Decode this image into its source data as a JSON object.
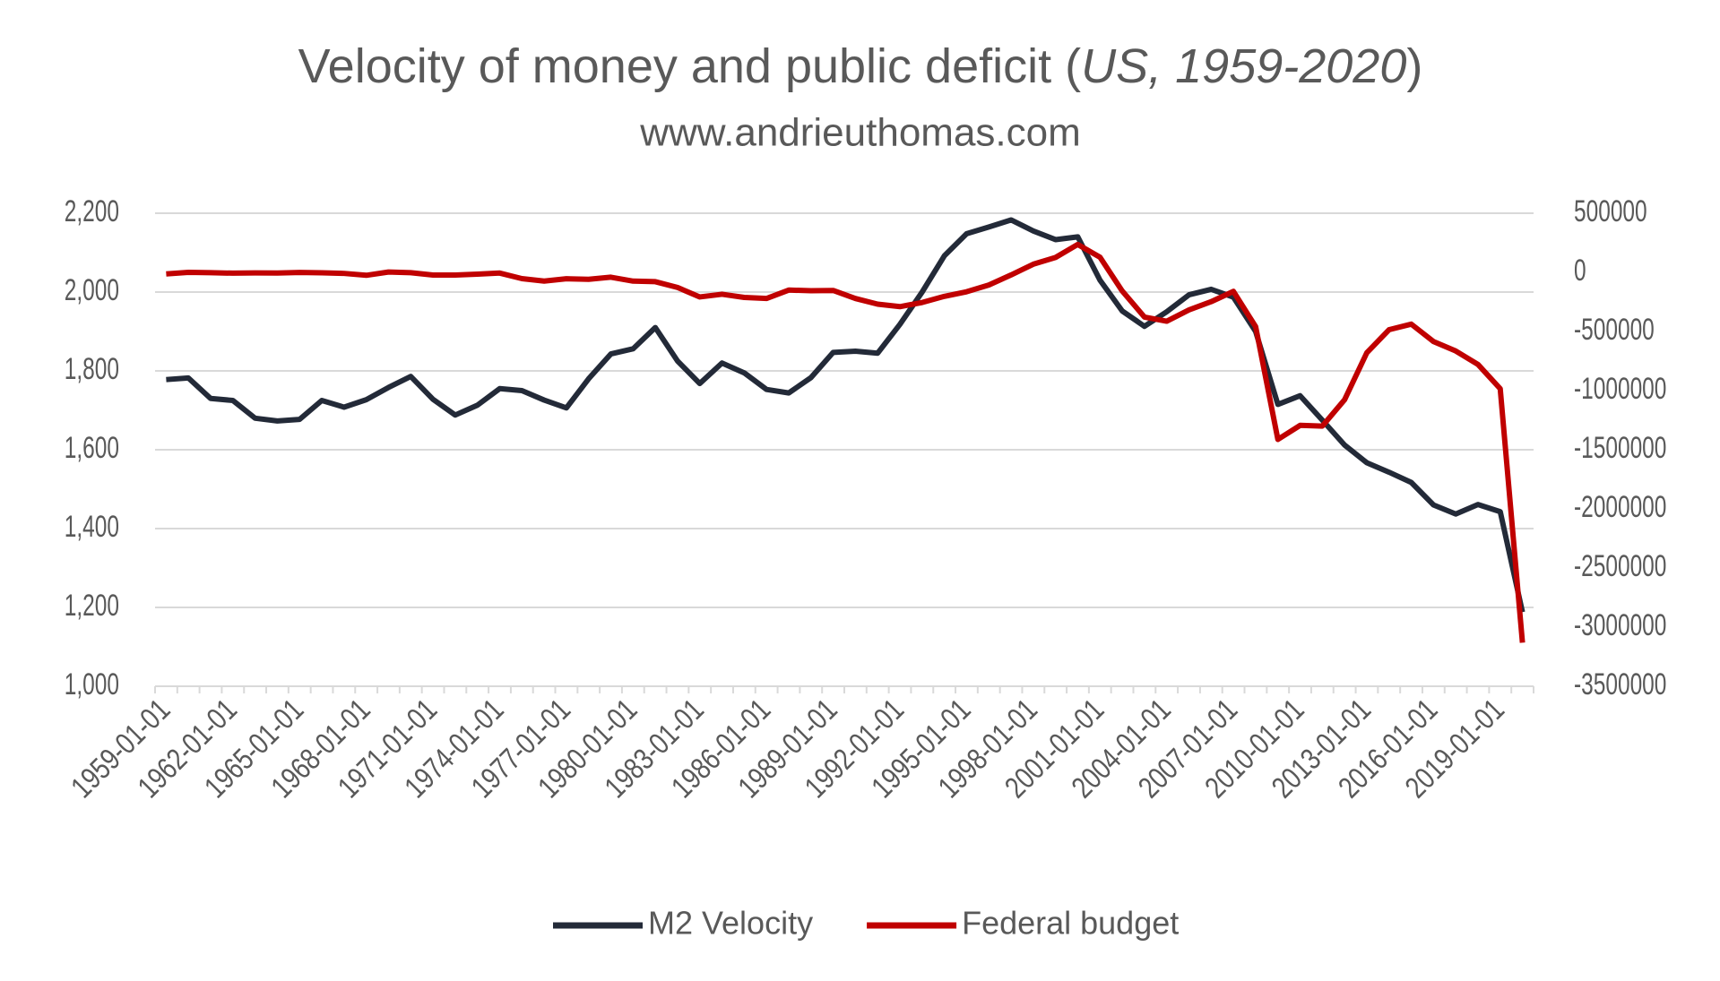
{
  "chart_data": {
    "type": "line",
    "title": [
      "Velocity of money and public deficit (",
      "US, 1959-2020",
      ")"
    ],
    "subtitle": "www.andrieuthomas.com",
    "categories": [
      "1959-01-01",
      null,
      null,
      "1962-01-01",
      null,
      null,
      "1965-01-01",
      null,
      null,
      "1968-01-01",
      null,
      null,
      "1971-01-01",
      null,
      null,
      "1974-01-01",
      null,
      null,
      "1977-01-01",
      null,
      null,
      "1980-01-01",
      null,
      null,
      "1983-01-01",
      null,
      null,
      "1986-01-01",
      null,
      null,
      "1989-01-01",
      null,
      null,
      "1992-01-01",
      null,
      null,
      "1995-01-01",
      null,
      null,
      "1998-01-01",
      null,
      null,
      "2001-01-01",
      null,
      null,
      "2004-01-01",
      null,
      null,
      "2007-01-01",
      null,
      null,
      "2010-01-01",
      null,
      null,
      "2013-01-01",
      null,
      null,
      "2016-01-01",
      null,
      null,
      "2019-01-01",
      null
    ],
    "series": [
      {
        "name": "M2 Velocity",
        "color": "#232a38",
        "values": [
          1778,
          1782,
          1730,
          1725,
          1680,
          1673,
          1677,
          1725,
          1708,
          1727,
          1758,
          1786,
          1728,
          1688,
          1713,
          1755,
          1750,
          1726,
          1706,
          1780,
          1843,
          1856,
          1910,
          1825,
          1768,
          1820,
          1795,
          1753,
          1744,
          1783,
          1847,
          1850,
          1845,
          1918,
          2000,
          2092,
          2148,
          2165,
          2183,
          2155,
          2133,
          2140,
          2030,
          1952,
          1913,
          1950,
          1993,
          2007,
          1987,
          1900,
          1715,
          1737,
          1675,
          1612,
          1567,
          1543,
          1517,
          1460,
          1437,
          1461,
          1443,
          1188
        ]
      },
      {
        "name": "Federal budget",
        "color": "#c00000",
        "axis": "y2",
        "values": [
          -13000,
          0,
          -3000,
          -7000,
          -5000,
          -6000,
          -1000,
          -4000,
          -9000,
          -25000,
          3000,
          -3000,
          -23000,
          -23000,
          -15000,
          -6000,
          -53000,
          -74000,
          -54000,
          -59000,
          -41000,
          -74000,
          -79000,
          -128000,
          -208000,
          -185000,
          -212000,
          -221000,
          -150000,
          -155000,
          -153000,
          -221000,
          -269000,
          -290000,
          -255000,
          -203000,
          -164000,
          -107000,
          -22000,
          69000,
          126000,
          236000,
          128000,
          -158000,
          -378000,
          -413000,
          -318000,
          -248000,
          -161000,
          -459000,
          -1413000,
          -1294000,
          -1300000,
          -1077000,
          -680000,
          -485000,
          -438000,
          -585000,
          -665000,
          -779000,
          -984000,
          -3132000
        ]
      }
    ],
    "ylim": [
      1000,
      2200
    ],
    "yticks": [
      {
        "value": 1000,
        "label": "1,000"
      },
      {
        "value": 1200,
        "label": "1,200"
      },
      {
        "value": 1400,
        "label": "1,400"
      },
      {
        "value": 1600,
        "label": "1,600"
      },
      {
        "value": 1800,
        "label": "1,800"
      },
      {
        "value": 2000,
        "label": "2,000"
      },
      {
        "value": 2200,
        "label": "2,200"
      }
    ],
    "y2lim": [
      -3500000,
      500000
    ],
    "y2ticks": [
      -3500000,
      -3000000,
      -2500000,
      -2000000,
      -1500000,
      -1000000,
      -500000,
      0,
      500000
    ],
    "grid": true,
    "legend": "bottom"
  }
}
